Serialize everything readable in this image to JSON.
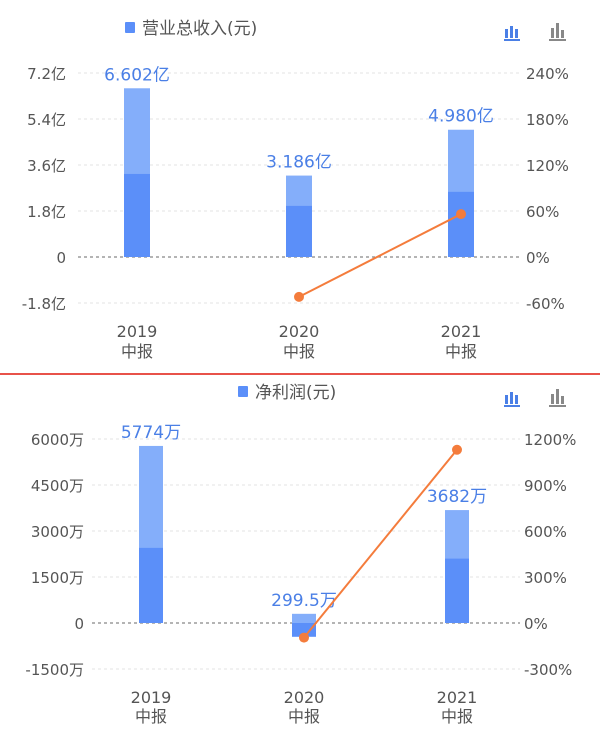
{
  "colors": {
    "bar_dark": "#5b8ff9",
    "bar_light": "#84aefa",
    "value_label": "#4a7fe6",
    "line": "#f47c3c",
    "axis_text": "#555555",
    "zero_line": "#888888",
    "grid": "#e3e3e3",
    "divider": "#e8524a",
    "icon_active": "#4a7fe6",
    "icon_inactive": "#888888"
  },
  "chart_data": [
    {
      "type": "bar",
      "title": "营业总收入(元)",
      "legend": {
        "label": "营业总收入(元)",
        "position": "top-center"
      },
      "categories": [
        "2019",
        "2020",
        "2021"
      ],
      "category_sublabel": "中报",
      "values": [
        6.602,
        3.186,
        4.98
      ],
      "value_labels": [
        "6.602亿",
        "3.186亿",
        "4.980亿"
      ],
      "inner_values": [
        3.25,
        2.0,
        2.55
      ],
      "unit": "亿",
      "y_left": {
        "ticks": [
          7.2,
          5.4,
          3.6,
          1.8,
          0,
          -1.8
        ],
        "tick_labels": [
          "7.2亿",
          "5.4亿",
          "3.6亿",
          "1.8亿",
          "0",
          "-1.8亿"
        ],
        "range": [
          -1.8,
          7.2
        ]
      },
      "y_right": {
        "ticks": [
          240,
          180,
          120,
          60,
          0,
          -60
        ],
        "tick_labels": [
          "240%",
          "180%",
          "120%",
          "60%",
          "0%",
          "-60%"
        ],
        "range": [
          -60,
          240
        ]
      },
      "growth_line": {
        "categories": [
          "2020",
          "2021"
        ],
        "values": [
          -52,
          56
        ],
        "unit": "%"
      },
      "grid": true,
      "view_icons": [
        "grouped-bar-icon",
        "bar-chart-icon"
      ]
    },
    {
      "type": "bar",
      "title": "净利润(元)",
      "legend": {
        "label": "净利润(元)",
        "position": "top-center"
      },
      "categories": [
        "2019",
        "2020",
        "2021"
      ],
      "category_sublabel": "中报",
      "values": [
        5774,
        299.5,
        3682
      ],
      "value_labels": [
        "5774万",
        "299.5万",
        "3682万"
      ],
      "inner_values": [
        2450,
        -450,
        2100
      ],
      "unit": "万",
      "y_left": {
        "ticks": [
          6000,
          4500,
          3000,
          1500,
          0,
          -1500
        ],
        "tick_labels": [
          "6000万",
          "4500万",
          "3000万",
          "1500万",
          "0",
          "-1500万"
        ],
        "range": [
          -1500,
          6000
        ]
      },
      "y_right": {
        "ticks": [
          1200,
          900,
          600,
          300,
          0,
          -300
        ],
        "tick_labels": [
          "1200%",
          "900%",
          "600%",
          "300%",
          "0%",
          "-300%"
        ],
        "range": [
          -300,
          1200
        ]
      },
      "growth_line": {
        "categories": [
          "2020",
          "2021"
        ],
        "values": [
          -95,
          1130
        ],
        "unit": "%"
      },
      "grid": true,
      "view_icons": [
        "grouped-bar-icon",
        "bar-chart-icon"
      ]
    }
  ]
}
